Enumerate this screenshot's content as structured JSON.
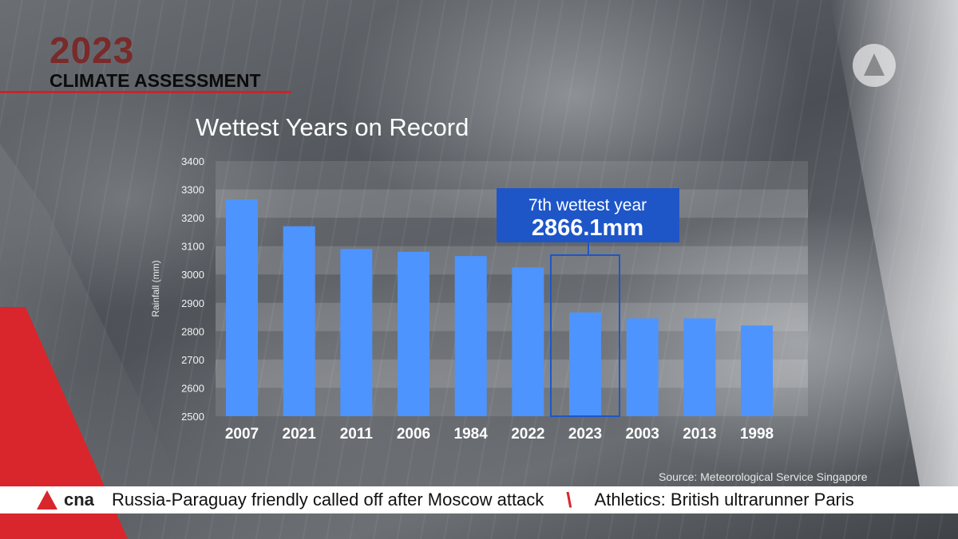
{
  "header": {
    "year": "2023",
    "subtitle": "CLIMATE ASSESSMENT"
  },
  "chart_data": {
    "type": "bar",
    "title": "Wettest Years on Record",
    "ylabel": "Rainfall (mm)",
    "xlabel": "",
    "ylim": [
      2500,
      3400
    ],
    "yticks": [
      2500,
      2600,
      2700,
      2800,
      2900,
      3000,
      3100,
      3200,
      3300,
      3400
    ],
    "categories": [
      "2007",
      "2021",
      "2011",
      "2006",
      "1984",
      "2022",
      "2023",
      "2003",
      "2013",
      "1998"
    ],
    "values": [
      3265,
      3170,
      3090,
      3080,
      3065,
      3025,
      2866.1,
      2845,
      2845,
      2820
    ],
    "bar_color": "#4d94ff",
    "highlight": {
      "category": "2023",
      "label": "7th wettest year",
      "value_label": "2866.1mm",
      "color": "#1e56c8"
    },
    "grid": "horizontal bands"
  },
  "source": "Source: Meteorological Service Singapore",
  "ticker": {
    "brand": "cna",
    "items": [
      "Russia-Paraguay friendly called off after Moscow attack",
      "Athletics: British ultrarunner Paris"
    ]
  },
  "colors": {
    "accent_red": "#d8262c",
    "header_year": "#7a2a2a"
  }
}
